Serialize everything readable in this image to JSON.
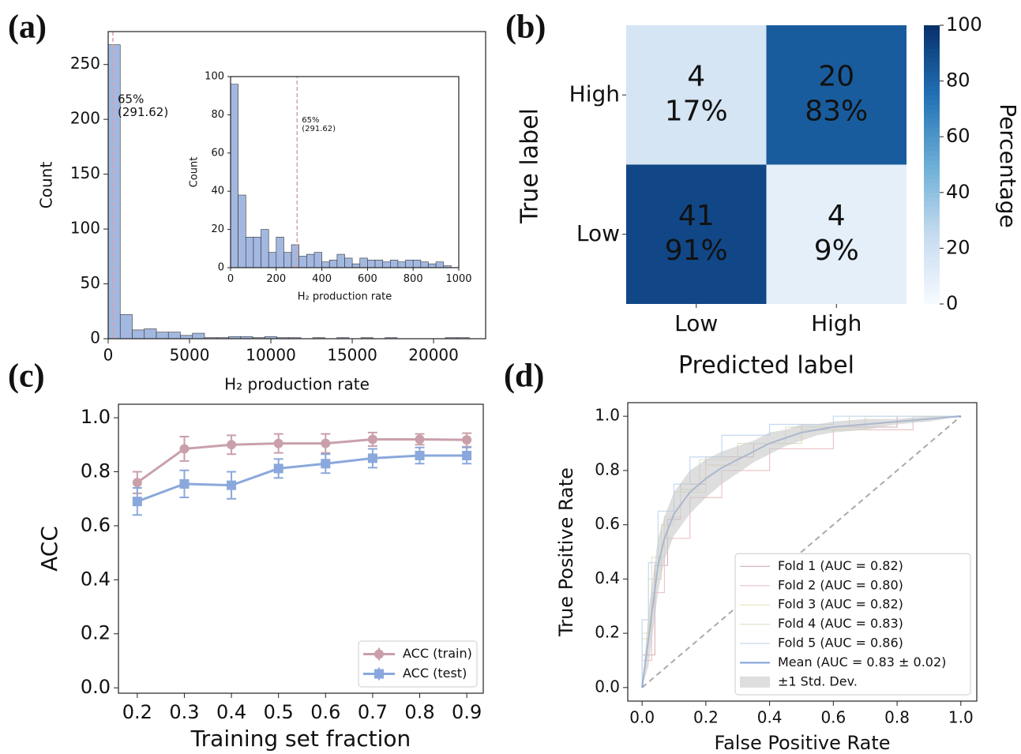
{
  "chart_data": [
    {
      "type": "histogram",
      "panel_label": "(a)",
      "xlabel": "H₂ production rate",
      "ylabel": "Count",
      "color": "#a3b8e0",
      "bins": [
        0,
        740,
        1480,
        2220,
        2960,
        3700,
        4440,
        5180,
        5920,
        6660,
        7400,
        8140,
        8880,
        9620,
        10360,
        11100,
        11840,
        12580,
        13320,
        14060,
        14800,
        15540,
        16280,
        17020,
        17760,
        18500,
        19240,
        19980,
        20720,
        21460,
        22200
      ],
      "values": [
        268,
        22,
        8,
        9,
        6,
        6,
        3,
        5,
        1,
        1,
        2,
        2,
        1,
        2,
        1,
        1,
        0,
        1,
        0,
        1,
        0,
        1,
        0,
        1,
        0,
        0,
        0,
        0,
        1,
        1
      ],
      "xlim": [
        0,
        23200
      ],
      "ylim": [
        0,
        280
      ],
      "xticks": [
        0,
        5000,
        10000,
        15000,
        20000
      ],
      "yticks": [
        0,
        50,
        100,
        150,
        200,
        250
      ],
      "annotation": {
        "x": 291.62,
        "color": "#d9a0a8",
        "text": [
          "65%",
          "(291.62)"
        ]
      },
      "inset": {
        "xlabel": "H₂ production rate",
        "ylabel": "Count",
        "color": "#a3b8e0",
        "bins": [
          0,
          33.3,
          66.7,
          100,
          133.3,
          166.7,
          200,
          233.3,
          266.7,
          300,
          333.3,
          366.7,
          400,
          433.3,
          466.7,
          500,
          533.3,
          566.7,
          600,
          633.3,
          666.7,
          700,
          733.3,
          766.7,
          800,
          833.3,
          866.7,
          900,
          933.3,
          966.7,
          1000
        ],
        "values": [
          96,
          38,
          16,
          16,
          20,
          8,
          16,
          8,
          12,
          6,
          7,
          8,
          3,
          4,
          7,
          5,
          2,
          5,
          4,
          4,
          3,
          4,
          3,
          4,
          4,
          3,
          2,
          3,
          1,
          0
        ],
        "xlim": [
          0,
          1000
        ],
        "ylim": [
          0,
          100
        ],
        "xticks": [
          0,
          200,
          400,
          600,
          800,
          1000
        ],
        "yticks": [
          0,
          20,
          40,
          60,
          80,
          100
        ],
        "annotation": {
          "x": 291.62,
          "color": "#d9a0a8",
          "text": [
            "65%",
            "(291.62)"
          ]
        }
      }
    },
    {
      "type": "heatmap",
      "panel_label": "(b)",
      "xlabel": "Predicted label",
      "ylabel": "True label",
      "rows": [
        "High",
        "Low"
      ],
      "columns": [
        "Low",
        "High"
      ],
      "counts": [
        [
          4,
          20
        ],
        [
          41,
          4
        ]
      ],
      "values": [
        [
          17,
          83
        ],
        [
          91,
          9
        ]
      ],
      "value_labels": [
        [
          "17%",
          "83%"
        ],
        [
          "91%",
          "9%"
        ]
      ],
      "colorbar_label": "Percentage",
      "clim": [
        0,
        100
      ],
      "cticks": [
        0,
        20,
        40,
        60,
        80,
        100
      ]
    },
    {
      "type": "line",
      "panel_label": "(c)",
      "xlabel": "Training set fraction",
      "ylabel": "ACC",
      "legend": "lower right",
      "x": [
        0.2,
        0.3,
        0.4,
        0.5,
        0.6,
        0.7,
        0.8,
        0.9
      ],
      "series": [
        {
          "name": "ACC (train)",
          "color": "#c9a0aa",
          "marker": "circle",
          "values": [
            0.76,
            0.885,
            0.9,
            0.905,
            0.905,
            0.92,
            0.92,
            0.918
          ],
          "errors": [
            0.04,
            0.045,
            0.035,
            0.035,
            0.035,
            0.025,
            0.02,
            0.025
          ]
        },
        {
          "name": "ACC (test)",
          "color": "#8aa8dc",
          "marker": "square",
          "values": [
            0.69,
            0.755,
            0.75,
            0.812,
            0.83,
            0.85,
            0.86,
            0.86
          ],
          "errors": [
            0.05,
            0.05,
            0.05,
            0.035,
            0.035,
            0.035,
            0.03,
            0.03
          ]
        }
      ],
      "xlim": [
        0.16,
        0.935
      ],
      "ylim": [
        -0.02,
        1.05
      ],
      "xticks": [
        0.2,
        0.3,
        0.4,
        0.5,
        0.6,
        0.7,
        0.8,
        0.9
      ],
      "yticks": [
        {
          "value": 0,
          "label": "0.0"
        },
        0.2,
        0.4,
        0.6,
        0.8,
        {
          "value": 1,
          "label": "1.0"
        }
      ]
    },
    {
      "type": "line",
      "panel_label": "(d)",
      "xlabel": "False Positive Rate",
      "ylabel": "True Positive Rate",
      "legend": "lower right",
      "series": [
        {
          "name": "Fold 1 (AUC = 0.82)",
          "color": "#d8b4bd",
          "x": [
            0,
            0,
            0.04,
            0.04,
            0.08,
            0.08,
            0.12,
            0.12,
            0.2,
            0.2,
            0.35,
            0.35,
            0.5,
            0.5,
            0.8,
            0.8,
            1
          ],
          "values": [
            0,
            0.12,
            0.12,
            0.45,
            0.45,
            0.62,
            0.62,
            0.75,
            0.75,
            0.85,
            0.85,
            0.9,
            0.9,
            0.96,
            0.96,
            1,
            1
          ]
        },
        {
          "name": "Fold 2 (AUC = 0.80)",
          "color": "#ecc4c8",
          "x": [
            0,
            0,
            0.03,
            0.03,
            0.07,
            0.07,
            0.15,
            0.15,
            0.25,
            0.25,
            0.4,
            0.4,
            0.6,
            0.6,
            0.85,
            0.85,
            1
          ],
          "values": [
            0,
            0.1,
            0.1,
            0.35,
            0.35,
            0.55,
            0.55,
            0.7,
            0.7,
            0.8,
            0.8,
            0.88,
            0.88,
            0.95,
            0.95,
            1,
            1
          ]
        },
        {
          "name": "Fold 3 (AUC = 0.82)",
          "color": "#e8e4bc",
          "x": [
            0,
            0,
            0.02,
            0.02,
            0.06,
            0.06,
            0.1,
            0.1,
            0.2,
            0.2,
            0.3,
            0.3,
            0.5,
            0.5,
            0.7,
            0.7,
            1
          ],
          "values": [
            0,
            0.2,
            0.2,
            0.4,
            0.4,
            0.6,
            0.6,
            0.72,
            0.72,
            0.82,
            0.82,
            0.9,
            0.9,
            0.95,
            0.95,
            1,
            1
          ]
        },
        {
          "name": "Fold 4 (AUC = 0.83)",
          "color": "#dce6cc",
          "x": [
            0,
            0,
            0.03,
            0.03,
            0.07,
            0.07,
            0.12,
            0.12,
            0.18,
            0.18,
            0.3,
            0.3,
            0.45,
            0.45,
            0.65,
            0.65,
            1
          ],
          "values": [
            0,
            0.18,
            0.18,
            0.48,
            0.48,
            0.63,
            0.63,
            0.73,
            0.73,
            0.84,
            0.84,
            0.9,
            0.9,
            0.96,
            0.96,
            1,
            1
          ]
        },
        {
          "name": "Fold 5 (AUC = 0.86)",
          "color": "#c4daf2",
          "x": [
            0,
            0,
            0.02,
            0.02,
            0.05,
            0.05,
            0.1,
            0.1,
            0.15,
            0.15,
            0.25,
            0.25,
            0.4,
            0.4,
            0.6,
            0.6,
            1
          ],
          "values": [
            0,
            0.25,
            0.25,
            0.46,
            0.46,
            0.65,
            0.65,
            0.75,
            0.75,
            0.85,
            0.85,
            0.93,
            0.93,
            0.97,
            0.97,
            1,
            1
          ]
        },
        {
          "name": "Mean (AUC = 0.83 ± 0.02)",
          "color": "#7f9fd8",
          "width": 2,
          "x": [
            0,
            0.02,
            0.05,
            0.07,
            0.1,
            0.15,
            0.2,
            0.25,
            0.3,
            0.35,
            0.4,
            0.45,
            0.5,
            0.55,
            0.6,
            0.7,
            0.8,
            0.9,
            1
          ],
          "values": [
            0,
            0.18,
            0.45,
            0.55,
            0.64,
            0.72,
            0.77,
            0.81,
            0.84,
            0.87,
            0.9,
            0.92,
            0.94,
            0.95,
            0.96,
            0.97,
            0.98,
            0.99,
            1
          ]
        },
        {
          "name": "±1 Std. Dev.",
          "color": "#c8c8c8",
          "x": [
            0,
            0.02,
            0.05,
            0.07,
            0.1,
            0.15,
            0.2,
            0.25,
            0.3,
            0.35,
            0.4,
            0.45,
            0.5,
            0.55,
            0.6,
            0.7,
            0.8,
            0.9,
            1
          ],
          "lower": [
            0,
            0.08,
            0.35,
            0.47,
            0.56,
            0.64,
            0.7,
            0.75,
            0.79,
            0.83,
            0.86,
            0.89,
            0.91,
            0.93,
            0.94,
            0.95,
            0.97,
            0.98,
            1
          ],
          "upper": [
            0,
            0.28,
            0.55,
            0.63,
            0.72,
            0.8,
            0.84,
            0.87,
            0.89,
            0.91,
            0.94,
            0.95,
            0.97,
            0.97,
            0.98,
            0.99,
            0.99,
            1,
            1
          ]
        }
      ],
      "diagonal": {
        "x": [
          0,
          1
        ],
        "values": [
          0,
          1
        ],
        "color": "#aaaaaa"
      },
      "xlim": [
        -0.045,
        1.05
      ],
      "ylim": [
        -0.05,
        1.05
      ],
      "xticks": [
        {
          "value": 0,
          "label": "0.0"
        },
        0.2,
        0.4,
        0.6,
        0.8,
        {
          "value": 1,
          "label": "1.0"
        }
      ],
      "yticks": [
        {
          "value": 0,
          "label": "0.0"
        },
        0.2,
        0.4,
        0.6,
        0.8,
        {
          "value": 1,
          "label": "1.0"
        }
      ]
    }
  ]
}
